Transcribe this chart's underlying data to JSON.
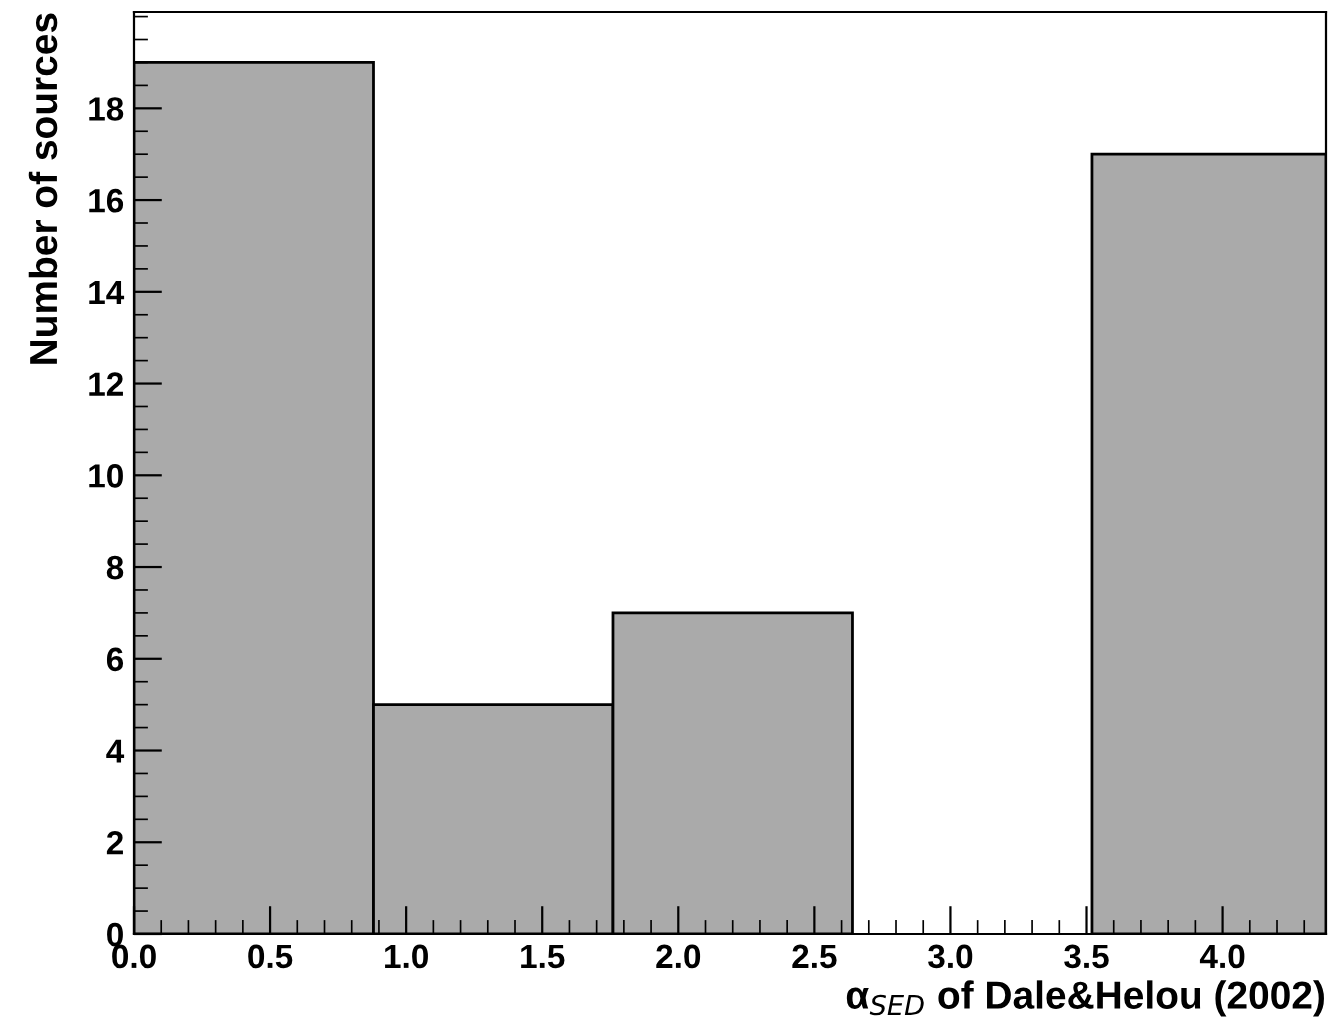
{
  "chart_data": {
    "type": "histogram",
    "xlabel": "α$_{SED}$ of Dale&Helou (2002)",
    "ylabel": "Number of sources",
    "bins": [
      0,
      0.88,
      1.76,
      2.64,
      3.52,
      4.38
    ],
    "values": [
      19,
      5,
      7,
      0,
      17
    ],
    "color": "#aaaaaa",
    "xlim": [
      0,
      4.38
    ],
    "xticks": [
      {
        "value": 0,
        "label": "0.0"
      },
      0.5,
      {
        "value": 1,
        "label": "1.0"
      },
      1.5,
      {
        "value": 2,
        "label": "2.0"
      },
      2.5,
      {
        "value": 3,
        "label": "3.0"
      },
      3.5,
      {
        "value": 4,
        "label": "4.0"
      }
    ],
    "ylim": [
      0,
      20.1
    ],
    "yticks": [
      0,
      2,
      4,
      6,
      8,
      10,
      12,
      14,
      16,
      18
    ],
    "grid": false,
    "legend": false
  }
}
